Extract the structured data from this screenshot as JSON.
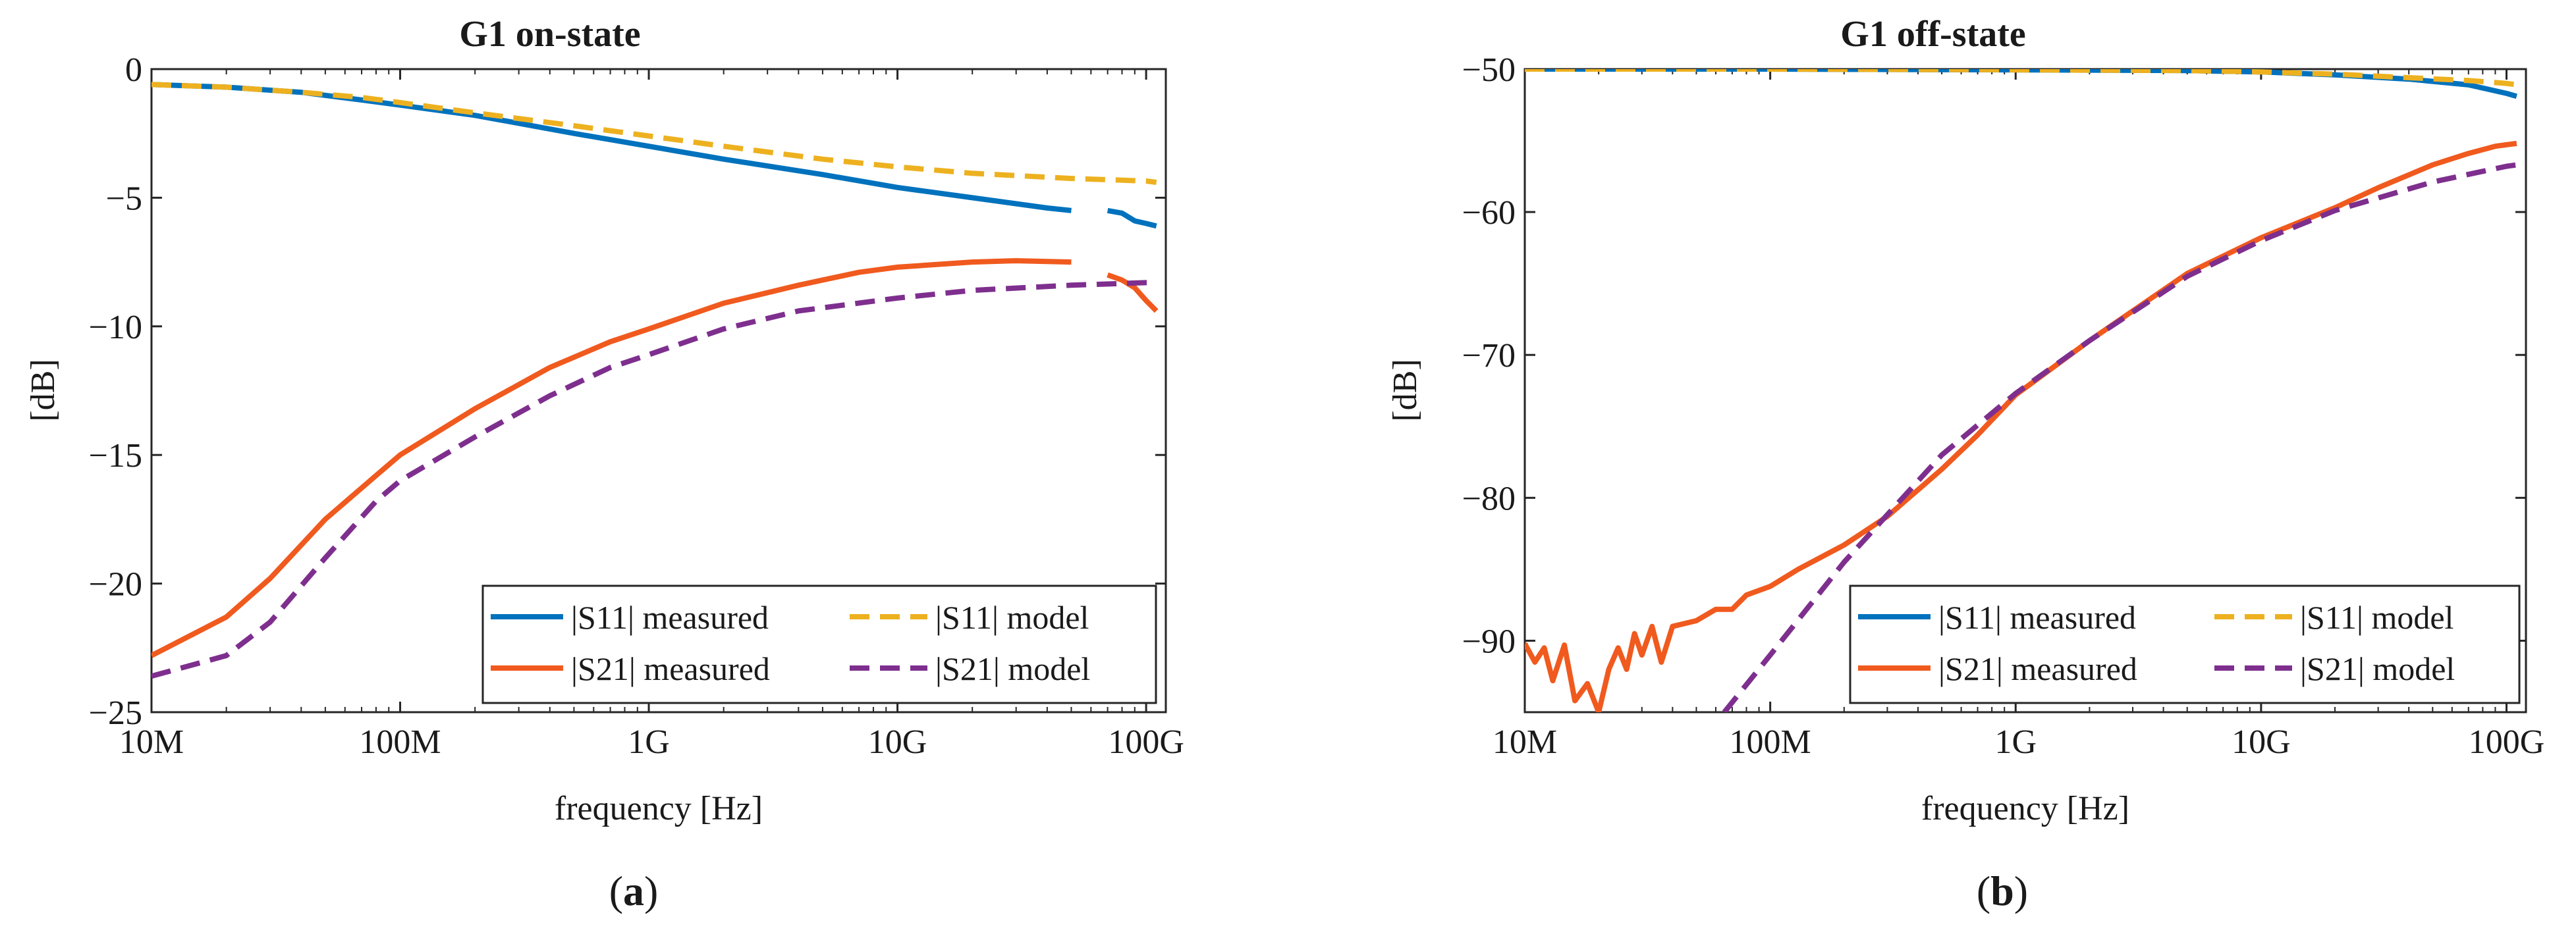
{
  "chart_data": [
    {
      "type": "line",
      "panel_label": "a",
      "title": "G1 on-state",
      "xlabel": "frequency [Hz]",
      "ylabel": "[dB]",
      "xscale": "log",
      "xlim": [
        10000000,
        120000000000
      ],
      "ylim": [
        -25,
        0
      ],
      "xticks": [
        10000000,
        100000000,
        1000000000,
        10000000000,
        100000000000
      ],
      "xtick_labels": [
        "10M",
        "100M",
        "1G",
        "10G",
        "100G"
      ],
      "yticks": [
        0,
        -5,
        -10,
        -15,
        -20,
        -25
      ],
      "ytick_labels": [
        "0",
        "-5",
        "-10",
        "-15",
        "-20",
        "-25"
      ],
      "grid": false,
      "legend_position": "bottom-right",
      "series": [
        {
          "name": "|S11| measured",
          "color": "#0072BD",
          "style": "solid",
          "points": [
            [
              10000000.0,
              -0.6
            ],
            [
              20000000.0,
              -0.7
            ],
            [
              40000000.0,
              -0.9
            ],
            [
              70000000.0,
              -1.2
            ],
            [
              100000000.0,
              -1.4
            ],
            [
              200000000.0,
              -1.8
            ],
            [
              500000000.0,
              -2.5
            ],
            [
              1000000000.0,
              -3.0
            ],
            [
              2000000000.0,
              -3.5
            ],
            [
              5000000000.0,
              -4.1
            ],
            [
              10000000000.0,
              -4.6
            ],
            [
              20000000000.0,
              -5.0
            ],
            [
              40000000000.0,
              -5.4
            ],
            [
              50000000000.0,
              -5.5
            ]
          ]
        },
        {
          "name": "|S11| measured",
          "color": "#0072BD",
          "style": "solid",
          "points": [
            [
              70000000000.0,
              -5.5
            ],
            [
              80000000000.0,
              -5.6
            ],
            [
              90000000000.0,
              -5.9
            ],
            [
              100000000000.0,
              -6.0
            ],
            [
              110000000000.0,
              -6.1
            ]
          ]
        },
        {
          "name": "|S11| model",
          "color": "#EDB120",
          "style": "dashed",
          "points": [
            [
              10000000.0,
              -0.6
            ],
            [
              20000000.0,
              -0.7
            ],
            [
              40000000.0,
              -0.9
            ],
            [
              70000000.0,
              -1.1
            ],
            [
              100000000.0,
              -1.3
            ],
            [
              200000000.0,
              -1.7
            ],
            [
              500000000.0,
              -2.2
            ],
            [
              1000000000.0,
              -2.6
            ],
            [
              2000000000.0,
              -3.0
            ],
            [
              5000000000.0,
              -3.5
            ],
            [
              10000000000.0,
              -3.8
            ],
            [
              20000000000.0,
              -4.05
            ],
            [
              50000000000.0,
              -4.25
            ],
            [
              100000000000.0,
              -4.35
            ],
            [
              110000000000.0,
              -4.4
            ]
          ]
        },
        {
          "name": "|S21| measured",
          "color": "#F05A1E",
          "style": "solid",
          "points": [
            [
              10000000.0,
              -22.8
            ],
            [
              20000000.0,
              -21.3
            ],
            [
              30000000.0,
              -19.8
            ],
            [
              50000000.0,
              -17.5
            ],
            [
              80000000.0,
              -15.8
            ],
            [
              100000000.0,
              -15.0
            ],
            [
              200000000.0,
              -13.2
            ],
            [
              400000000.0,
              -11.6
            ],
            [
              700000000.0,
              -10.6
            ],
            [
              1000000000.0,
              -10.1
            ],
            [
              2000000000.0,
              -9.1
            ],
            [
              4000000000.0,
              -8.4
            ],
            [
              7000000000.0,
              -7.9
            ],
            [
              10000000000.0,
              -7.7
            ],
            [
              20000000000.0,
              -7.5
            ],
            [
              30000000000.0,
              -7.45
            ],
            [
              50000000000.0,
              -7.5
            ]
          ]
        },
        {
          "name": "|S21| measured",
          "color": "#F05A1E",
          "style": "solid",
          "points": [
            [
              70000000000.0,
              -8.0
            ],
            [
              80000000000.0,
              -8.2
            ],
            [
              90000000000.0,
              -8.5
            ],
            [
              100000000000.0,
              -9.0
            ],
            [
              110000000000.0,
              -9.4
            ]
          ]
        },
        {
          "name": "|S21| model",
          "color": "#7E2F8E",
          "style": "dashed",
          "points": [
            [
              10000000.0,
              -23.6
            ],
            [
              20000000.0,
              -22.8
            ],
            [
              30000000.0,
              -21.5
            ],
            [
              50000000.0,
              -19.0
            ],
            [
              80000000.0,
              -16.8
            ],
            [
              100000000.0,
              -16.0
            ],
            [
              200000000.0,
              -14.3
            ],
            [
              400000000.0,
              -12.7
            ],
            [
              700000000.0,
              -11.6
            ],
            [
              1000000000.0,
              -11.1
            ],
            [
              2000000000.0,
              -10.1
            ],
            [
              4000000000.0,
              -9.4
            ],
            [
              10000000000.0,
              -8.9
            ],
            [
              20000000000.0,
              -8.6
            ],
            [
              50000000000.0,
              -8.4
            ],
            [
              100000000000.0,
              -8.3
            ],
            [
              110000000000.0,
              -8.3
            ]
          ]
        }
      ]
    },
    {
      "type": "line",
      "panel_label": "b",
      "title": "G1 off-state",
      "xlabel": "frequency [Hz]",
      "ylabel": "[dB]",
      "xscale": "log",
      "xlim": [
        10000000,
        120000000000
      ],
      "ylim": [
        -95,
        -50
      ],
      "xticks": [
        10000000,
        100000000,
        1000000000,
        10000000000,
        100000000000
      ],
      "xtick_labels": [
        "10M",
        "100M",
        "1G",
        "10G",
        "100G"
      ],
      "yticks": [
        -50,
        -60,
        -70,
        -80,
        -90
      ],
      "ytick_labels": [
        "-50",
        "-60",
        "-70",
        "-80",
        "-90"
      ],
      "grid": false,
      "legend_position": "bottom-right",
      "series": [
        {
          "name": "|S11| measured",
          "color": "#0072BD",
          "style": "solid",
          "points": [
            [
              10000000.0,
              -50.0
            ],
            [
              100000000.0,
              -50.0
            ],
            [
              1000000000.0,
              -50.05
            ],
            [
              5000000000.0,
              -50.1
            ],
            [
              10000000000.0,
              -50.2
            ],
            [
              20000000000.0,
              -50.4
            ],
            [
              40000000000.0,
              -50.7
            ],
            [
              70000000000.0,
              -51.1
            ],
            [
              100000000000.0,
              -51.7
            ],
            [
              110000000000.0,
              -51.9
            ]
          ]
        },
        {
          "name": "|S11| model",
          "color": "#EDB120",
          "style": "dashed",
          "points": [
            [
              10000000.0,
              -50.0
            ],
            [
              100000000.0,
              -50.0
            ],
            [
              1000000000.0,
              -50.05
            ],
            [
              5000000000.0,
              -50.1
            ],
            [
              10000000000.0,
              -50.2
            ],
            [
              20000000000.0,
              -50.35
            ],
            [
              40000000000.0,
              -50.6
            ],
            [
              70000000000.0,
              -50.8
            ],
            [
              100000000000.0,
              -51.0
            ],
            [
              110000000000.0,
              -51.1
            ]
          ]
        },
        {
          "name": "|S21| measured",
          "color": "#F05A1E",
          "style": "solid",
          "points": [
            [
              10000000.0,
              -90.2
            ],
            [
              11000000.0,
              -91.5
            ],
            [
              12000000.0,
              -90.5
            ],
            [
              13000000.0,
              -92.8
            ],
            [
              14500000.0,
              -90.3
            ],
            [
              16000000.0,
              -94.2
            ],
            [
              18000000.0,
              -93.0
            ],
            [
              20000000.0,
              -95.0
            ],
            [
              22000000.0,
              -92.0
            ],
            [
              24000000.0,
              -90.5
            ],
            [
              26000000.0,
              -92.0
            ],
            [
              28000000.0,
              -89.5
            ],
            [
              30000000.0,
              -91.0
            ],
            [
              33000000.0,
              -89.0
            ],
            [
              36000000.0,
              -91.5
            ],
            [
              40000000.0,
              -89.0
            ],
            [
              50000000.0,
              -88.6
            ],
            [
              60000000.0,
              -87.8
            ],
            [
              70000000.0,
              -87.8
            ],
            [
              80000000.0,
              -86.8
            ],
            [
              100000000.0,
              -86.2
            ],
            [
              130000000.0,
              -85.0
            ],
            [
              200000000.0,
              -83.3
            ],
            [
              300000000.0,
              -81.3
            ],
            [
              500000000.0,
              -78.0
            ],
            [
              700000000.0,
              -75.6
            ],
            [
              1000000000.0,
              -72.8
            ],
            [
              2000000000.0,
              -69.0
            ],
            [
              5000000000.0,
              -64.3
            ],
            [
              10000000000.0,
              -61.8
            ],
            [
              20000000000.0,
              -59.7
            ],
            [
              30000000000.0,
              -58.3
            ],
            [
              50000000000.0,
              -56.7
            ],
            [
              70000000000.0,
              -55.9
            ],
            [
              90000000000.0,
              -55.4
            ],
            [
              110000000000.0,
              -55.2
            ]
          ]
        },
        {
          "name": "|S21| model",
          "color": "#7E2F8E",
          "style": "dashed",
          "points": [
            [
              65000000.0,
              -95.0
            ],
            [
              100000000.0,
              -91.0
            ],
            [
              200000000.0,
              -84.5
            ],
            [
              500000000.0,
              -77.0
            ],
            [
              1000000000.0,
              -72.7
            ],
            [
              2000000000.0,
              -69.0
            ],
            [
              5000000000.0,
              -64.5
            ],
            [
              10000000000.0,
              -62.0
            ],
            [
              20000000000.0,
              -59.9
            ],
            [
              50000000000.0,
              -57.9
            ],
            [
              100000000000.0,
              -56.8
            ],
            [
              110000000000.0,
              -56.7
            ]
          ]
        }
      ]
    }
  ]
}
